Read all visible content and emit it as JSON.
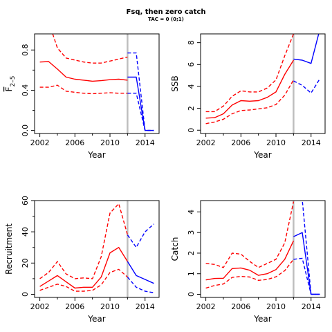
{
  "title": "Fsq, then zero catch",
  "subtitle": "TAC = 0 (0;1)",
  "colors": {
    "history": "#ff0000",
    "projection": "#0000ff",
    "divider": "#bebebe"
  },
  "chart_data": [
    {
      "type": "line",
      "ylabel": "F̅ 2–5",
      "ylabel_main": "F",
      "ylabel_sub": "2–5",
      "xlabel": "Year",
      "xlim": [
        2001.4,
        2015.6
      ],
      "ylim": [
        -0.03,
        0.96
      ],
      "xticks": [
        "2002",
        "2006",
        "2010",
        "2014"
      ],
      "yticks": [
        "0.0",
        "0.4",
        "0.8"
      ],
      "ytick_values": [
        0.0,
        0.4,
        0.8
      ],
      "yminor": [
        0.2,
        0.6
      ],
      "divider_year": 2012,
      "series": [
        {
          "role": "historical-median",
          "style": "solid",
          "color": "#ff0000",
          "x": [
            2002,
            2003,
            2004,
            2005,
            2006,
            2007,
            2008,
            2009,
            2010,
            2011,
            2012
          ],
          "y": [
            0.68,
            0.685,
            0.61,
            0.53,
            0.51,
            0.5,
            0.49,
            0.495,
            0.505,
            0.51,
            0.5
          ]
        },
        {
          "role": "historical-upper",
          "style": "dashed",
          "color": "#ff0000",
          "x": [
            2002,
            2003,
            2004,
            2005,
            2006,
            2007,
            2008,
            2009,
            2010,
            2011,
            2012
          ],
          "y": [
            1.05,
            1.08,
            0.82,
            0.72,
            0.7,
            0.68,
            0.67,
            0.67,
            0.69,
            0.71,
            0.73
          ]
        },
        {
          "role": "historical-lower",
          "style": "dashed",
          "color": "#ff0000",
          "x": [
            2002,
            2003,
            2004,
            2005,
            2006,
            2007,
            2008,
            2009,
            2010,
            2011,
            2012
          ],
          "y": [
            0.43,
            0.43,
            0.45,
            0.39,
            0.38,
            0.37,
            0.365,
            0.37,
            0.375,
            0.37,
            0.37
          ]
        },
        {
          "role": "projection-median",
          "style": "solid",
          "color": "#0000ff",
          "x": [
            2012,
            2013,
            2014,
            2015
          ],
          "y": [
            0.53,
            0.53,
            0.0,
            0.0
          ]
        },
        {
          "role": "projection-upper",
          "style": "dashed",
          "color": "#0000ff",
          "x": [
            2012,
            2013,
            2014,
            2015
          ],
          "y": [
            0.77,
            0.77,
            0.0,
            0.0
          ]
        },
        {
          "role": "projection-lower",
          "style": "dashed",
          "color": "#0000ff",
          "x": [
            2012,
            2013,
            2014,
            2015
          ],
          "y": [
            0.37,
            0.37,
            0.0,
            0.0
          ]
        }
      ]
    },
    {
      "type": "line",
      "ylabel": "SSB",
      "xlabel": "Year",
      "xlim": [
        2001.4,
        2015.6
      ],
      "ylim": [
        -0.3,
        8.8
      ],
      "xticks": [
        "2002",
        "2006",
        "2010",
        "2014"
      ],
      "yticks": [
        "0",
        "2",
        "4",
        "6",
        "8"
      ],
      "ytick_values": [
        0,
        2,
        4,
        6,
        8
      ],
      "divider_year": 2012,
      "series": [
        {
          "role": "historical-median",
          "style": "solid",
          "color": "#ff0000",
          "x": [
            2002,
            2003,
            2004,
            2005,
            2006,
            2007,
            2008,
            2009,
            2010,
            2011,
            2012
          ],
          "y": [
            1.1,
            1.15,
            1.5,
            2.3,
            2.7,
            2.65,
            2.7,
            3.0,
            3.5,
            5.1,
            6.4
          ]
        },
        {
          "role": "historical-upper",
          "style": "dashed",
          "color": "#ff0000",
          "x": [
            2002,
            2003,
            2004,
            2005,
            2006,
            2007,
            2008,
            2009,
            2010,
            2011,
            2012
          ],
          "y": [
            1.7,
            1.7,
            2.2,
            3.1,
            3.6,
            3.5,
            3.5,
            3.85,
            4.6,
            6.8,
            8.8
          ]
        },
        {
          "role": "historical-lower",
          "style": "dashed",
          "color": "#ff0000",
          "x": [
            2002,
            2003,
            2004,
            2005,
            2006,
            2007,
            2008,
            2009,
            2010,
            2011,
            2012
          ],
          "y": [
            0.6,
            0.75,
            1.0,
            1.5,
            1.8,
            1.85,
            1.95,
            2.05,
            2.35,
            3.2,
            4.6
          ]
        },
        {
          "role": "projection-median",
          "style": "solid",
          "color": "#0000ff",
          "x": [
            2012,
            2013,
            2014,
            2015
          ],
          "y": [
            6.5,
            6.4,
            6.1,
            9.2
          ]
        },
        {
          "role": "projection-lower",
          "style": "dashed",
          "color": "#0000ff",
          "x": [
            2012,
            2013,
            2014,
            2015
          ],
          "y": [
            4.5,
            4.1,
            3.4,
            4.7
          ]
        }
      ]
    },
    {
      "type": "line",
      "ylabel": "Recruitment",
      "xlabel": "Year",
      "xlim": [
        2001.4,
        2015.6
      ],
      "ylim": [
        -2,
        60
      ],
      "xticks": [
        "2002",
        "2006",
        "2010",
        "2014"
      ],
      "yticks": [
        "0",
        "20",
        "40",
        "60"
      ],
      "ytick_values": [
        0,
        20,
        40,
        60
      ],
      "yminor": [
        10,
        30,
        50
      ],
      "divider_year": 2012,
      "series": [
        {
          "role": "historical-median",
          "style": "solid",
          "color": "#ff0000",
          "x": [
            2002,
            2003,
            2004,
            2005,
            2006,
            2007,
            2008,
            2009,
            2010,
            2011,
            2012
          ],
          "y": [
            5,
            8.5,
            12,
            8,
            4,
            4.5,
            4.5,
            11,
            26.5,
            30,
            21
          ]
        },
        {
          "role": "historical-upper",
          "style": "dashed",
          "color": "#ff0000",
          "x": [
            2002,
            2003,
            2004,
            2005,
            2006,
            2007,
            2008,
            2009,
            2010,
            2011,
            2012
          ],
          "y": [
            10,
            14,
            21,
            13,
            10,
            10.5,
            10,
            24,
            52,
            58,
            38
          ]
        },
        {
          "role": "historical-lower",
          "style": "dashed",
          "color": "#ff0000",
          "x": [
            2002,
            2003,
            2004,
            2005,
            2006,
            2007,
            2008,
            2009,
            2010,
            2011,
            2012
          ],
          "y": [
            2.5,
            4.5,
            6.5,
            5,
            2,
            2,
            2.5,
            6,
            14,
            16,
            11
          ]
        },
        {
          "role": "projection-median",
          "style": "solid",
          "color": "#0000ff",
          "x": [
            2012,
            2013,
            2014,
            2015
          ],
          "y": [
            21,
            12,
            9.5,
            7
          ]
        },
        {
          "role": "projection-upper",
          "style": "dashed",
          "color": "#0000ff",
          "x": [
            2012,
            2013,
            2014,
            2015
          ],
          "y": [
            38,
            30,
            40,
            45
          ]
        },
        {
          "role": "projection-lower",
          "style": "dashed",
          "color": "#0000ff",
          "x": [
            2012,
            2013,
            2014,
            2015
          ],
          "y": [
            11,
            4.5,
            2,
            1
          ]
        }
      ]
    },
    {
      "type": "line",
      "ylabel": "Catch",
      "xlabel": "Year",
      "xlim": [
        2001.4,
        2015.6
      ],
      "ylim": [
        -0.15,
        4.55
      ],
      "xticks": [
        "2002",
        "2006",
        "2010",
        "2014"
      ],
      "yticks": [
        "0",
        "1",
        "2",
        "3",
        "4"
      ],
      "ytick_values": [
        0,
        1,
        2,
        3,
        4
      ],
      "divider_year": 2012,
      "series": [
        {
          "role": "historical-median",
          "style": "solid",
          "color": "#ff0000",
          "x": [
            2002,
            2003,
            2004,
            2005,
            2006,
            2007,
            2008,
            2009,
            2010,
            2011,
            2012
          ],
          "y": [
            0.7,
            0.77,
            0.78,
            1.25,
            1.28,
            1.17,
            0.92,
            1.0,
            1.2,
            1.7,
            2.6
          ]
        },
        {
          "role": "historical-upper",
          "style": "dashed",
          "color": "#ff0000",
          "x": [
            2002,
            2003,
            2004,
            2005,
            2006,
            2007,
            2008,
            2009,
            2010,
            2011,
            2012
          ],
          "y": [
            1.5,
            1.45,
            1.3,
            2.0,
            1.95,
            1.6,
            1.3,
            1.5,
            1.7,
            2.5,
            4.5
          ]
        },
        {
          "role": "historical-lower",
          "style": "dashed",
          "color": "#ff0000",
          "x": [
            2002,
            2003,
            2004,
            2005,
            2006,
            2007,
            2008,
            2009,
            2010,
            2011,
            2012
          ],
          "y": [
            0.3,
            0.43,
            0.5,
            0.82,
            0.87,
            0.84,
            0.68,
            0.72,
            0.85,
            1.15,
            1.7
          ]
        },
        {
          "role": "projection-median",
          "style": "solid",
          "color": "#0000ff",
          "x": [
            2012,
            2013,
            2014,
            2015
          ],
          "y": [
            2.8,
            3.0,
            0.0,
            0.0
          ]
        },
        {
          "role": "projection-upper",
          "style": "dashed",
          "color": "#0000ff",
          "x": [
            2012,
            2013,
            2014,
            2015
          ],
          "y": [
            4.6,
            4.6,
            0.0,
            0.0
          ]
        },
        {
          "role": "projection-lower",
          "style": "dashed",
          "color": "#0000ff",
          "x": [
            2012,
            2013,
            2014,
            2015
          ],
          "y": [
            1.7,
            1.75,
            0.0,
            0.0
          ]
        }
      ]
    }
  ]
}
